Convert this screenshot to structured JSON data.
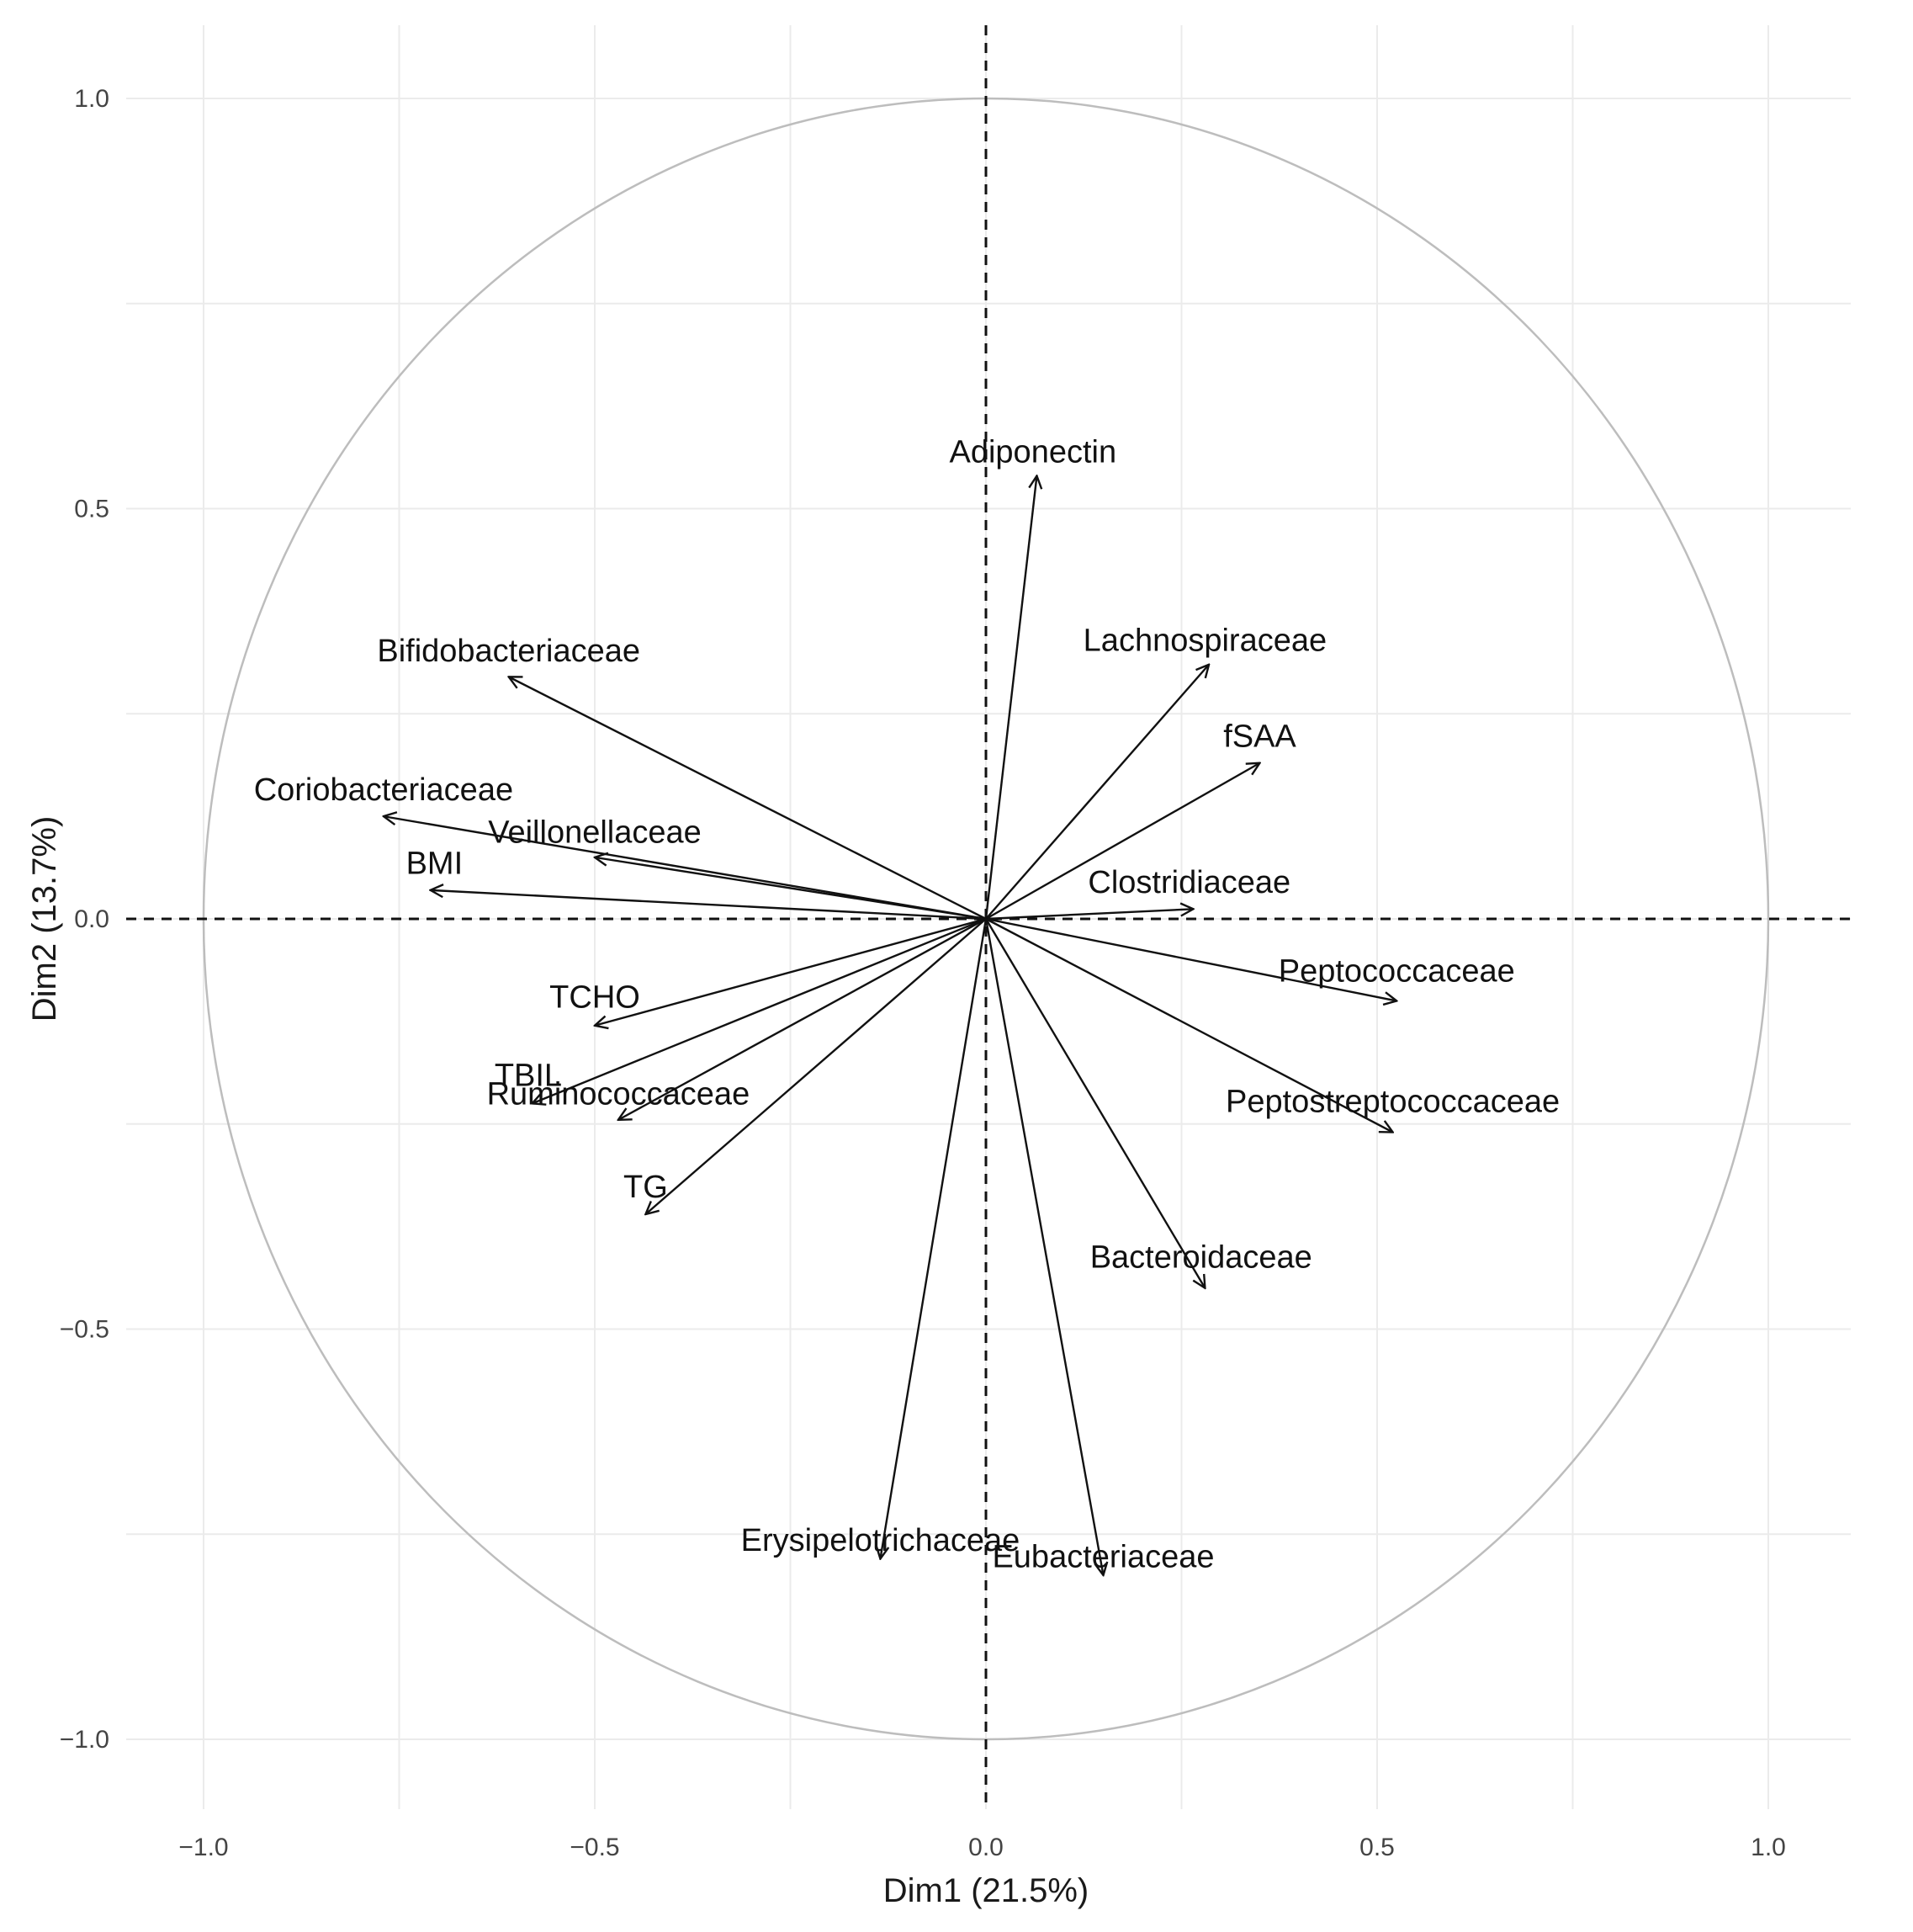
{
  "chart_data": {
    "type": "scatter",
    "subtype": "pca-correlation-circle",
    "title": "",
    "xlabel": "Dim1 (21.5%)",
    "ylabel": "Dim2 (13.7%)",
    "xlim": [
      -1.05,
      1.1
    ],
    "ylim": [
      -1.08,
      1.08
    ],
    "x_ticks": [
      -1.0,
      -0.5,
      0.0,
      0.5,
      1.0
    ],
    "x_tick_labels": [
      "−1.0",
      "−0.5",
      "0.0",
      "0.5",
      "1.0"
    ],
    "y_ticks": [
      -1.0,
      -0.5,
      0.0,
      0.5,
      1.0
    ],
    "y_tick_labels": [
      "−1.0",
      "−0.5",
      "0.0",
      "0.5",
      "1.0"
    ],
    "grid": true,
    "unit_circle": true,
    "zero_lines": "dashed",
    "variables": [
      {
        "name": "Adiponectin",
        "x": 0.065,
        "y": 0.54,
        "label_x": 0.06,
        "label_y": 0.57
      },
      {
        "name": "Lachnospiraceae",
        "x": 0.285,
        "y": 0.31,
        "label_x": 0.28,
        "label_y": 0.34
      },
      {
        "name": "fSAA",
        "x": 0.35,
        "y": 0.19,
        "label_x": 0.35,
        "label_y": 0.223
      },
      {
        "name": "Clostridiaceae",
        "x": 0.265,
        "y": 0.012,
        "label_x": 0.26,
        "label_y": 0.045
      },
      {
        "name": "Peptococcaceae",
        "x": 0.525,
        "y": -0.1,
        "label_x": 0.525,
        "label_y": -0.063
      },
      {
        "name": "Peptostreptococcaceae",
        "x": 0.52,
        "y": -0.26,
        "label_x": 0.52,
        "label_y": -0.222
      },
      {
        "name": "Bacteroidaceae",
        "x": 0.28,
        "y": -0.45,
        "label_x": 0.275,
        "label_y": -0.412
      },
      {
        "name": "Eubacteriaceae",
        "x": 0.15,
        "y": -0.8,
        "label_x": 0.15,
        "label_y": -0.777
      },
      {
        "name": "Erysipelotrichaceae",
        "x": -0.135,
        "y": -0.78,
        "label_x": -0.135,
        "label_y": -0.757
      },
      {
        "name": "Bifidobacteriaceae",
        "x": -0.61,
        "y": 0.295,
        "label_x": -0.61,
        "label_y": 0.327
      },
      {
        "name": "Coriobacteriaceae",
        "x": -0.77,
        "y": 0.125,
        "label_x": -0.77,
        "label_y": 0.158
      },
      {
        "name": "Veillonellaceae",
        "x": -0.5,
        "y": 0.075,
        "label_x": -0.5,
        "label_y": 0.106
      },
      {
        "name": "BMI",
        "x": -0.71,
        "y": 0.035,
        "label_x": -0.705,
        "label_y": 0.068
      },
      {
        "name": "TCHO",
        "x": -0.5,
        "y": -0.13,
        "label_x": -0.5,
        "label_y": -0.095
      },
      {
        "name": "TBIL",
        "x": -0.58,
        "y": -0.225,
        "label_x": -0.585,
        "label_y": -0.19
      },
      {
        "name": "Ruminococcaceae",
        "x": -0.47,
        "y": -0.245,
        "label_x": -0.47,
        "label_y": -0.213
      },
      {
        "name": "TG",
        "x": -0.435,
        "y": -0.36,
        "label_x": -0.435,
        "label_y": -0.326
      }
    ]
  }
}
